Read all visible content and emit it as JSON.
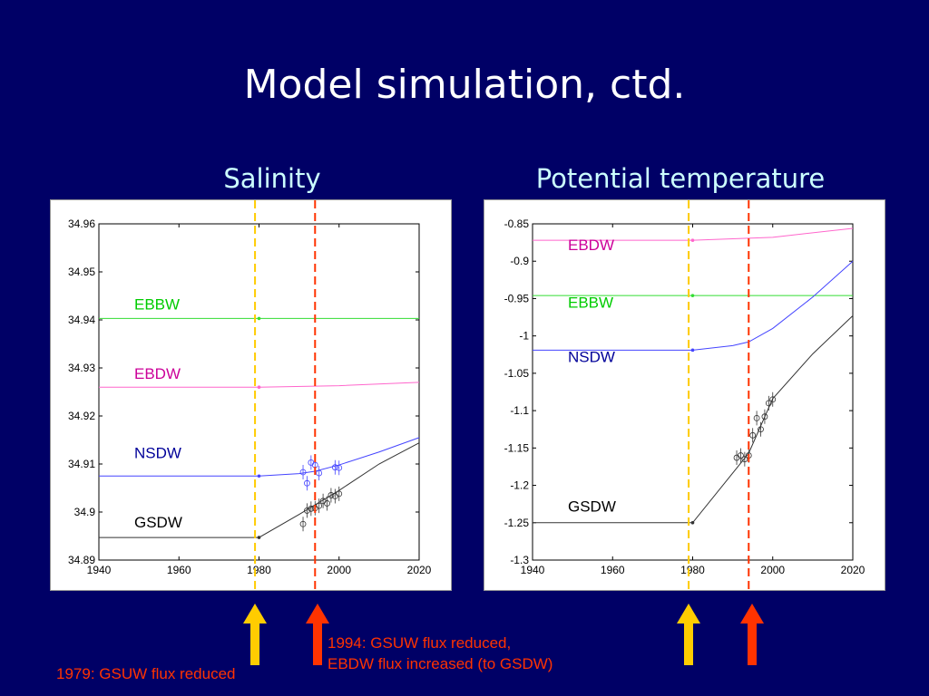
{
  "title": "Model simulation, ctd.",
  "notes": {
    "n1979": "1979: GSUW flux reduced",
    "n1994_line1": "1994: GSUW flux reduced,",
    "n1994_line2": "EBDW flux increased (to GSDW)"
  },
  "colors": {
    "EBBW": "#00cc00",
    "EBDW": "#cc0099",
    "NSDW": "#000099",
    "GSDW": "#000000",
    "line1979": "#ffcc00",
    "line1994": "#ff3300"
  },
  "chart_data": [
    {
      "type": "line",
      "title": "Salinity",
      "xlim": [
        1940,
        2020
      ],
      "ylim": [
        34.89,
        34.96
      ],
      "xticks": [
        "1940",
        "1960",
        "1980",
        "2000",
        "2020"
      ],
      "yticks": [
        "34.89",
        "34.9",
        "34.91",
        "34.92",
        "34.93",
        "34.94",
        "34.95",
        "34.96"
      ],
      "vlines": [
        1979,
        1994
      ],
      "series": [
        {
          "name": "EBBW",
          "x": [
            1940,
            1980,
            2020
          ],
          "y": [
            34.9403,
            34.9403,
            34.9403
          ],
          "label_y": 34.9422
        },
        {
          "name": "EBDW",
          "x": [
            1940,
            1980,
            2000,
            2020
          ],
          "y": [
            34.926,
            34.926,
            34.9263,
            34.927
          ],
          "label_y": 34.9277
        },
        {
          "name": "NSDW",
          "x": [
            1940,
            1980,
            1990,
            1994,
            2000,
            2010,
            2020
          ],
          "y": [
            34.9075,
            34.9075,
            34.908,
            34.9085,
            34.9098,
            34.9125,
            34.9155
          ],
          "label_y": 34.9112,
          "obs_x": [
            1991,
            1992,
            1993,
            1994,
            1995,
            1999,
            2000
          ],
          "obs_y": [
            34.9083,
            34.906,
            34.9103,
            34.9098,
            34.9081,
            34.9093,
            34.9092
          ]
        },
        {
          "name": "GSDW",
          "x": [
            1940,
            1980,
            1990,
            1994,
            2000,
            2010,
            2020
          ],
          "y": [
            34.8947,
            34.8947,
            34.8995,
            34.9015,
            34.9045,
            34.91,
            34.9144
          ],
          "label_y": 34.8968,
          "obs_x": [
            1991,
            1992,
            1993,
            1994,
            1995,
            1996,
            1997,
            1998,
            1999,
            2000
          ],
          "obs_y": [
            34.8975,
            34.9003,
            34.9007,
            34.9008,
            34.9013,
            34.9023,
            34.9018,
            34.9035,
            34.9033,
            34.9038
          ]
        }
      ]
    },
    {
      "type": "line",
      "title": "Potential temperature",
      "xlim": [
        1940,
        2020
      ],
      "ylim": [
        -1.3,
        -0.85
      ],
      "xticks": [
        "1940",
        "1960",
        "1980",
        "2000",
        "2020"
      ],
      "yticks": [
        "-1.3",
        "-1.25",
        "-1.2",
        "-1.15",
        "-1.1",
        "-1.05",
        "-1",
        "-0.95",
        "-0.9",
        "-0.85"
      ],
      "vlines": [
        1979,
        1994
      ],
      "series": [
        {
          "name": "EBDW",
          "x": [
            1940,
            1980,
            2000,
            2020
          ],
          "y": [
            -0.872,
            -0.872,
            -0.868,
            -0.856
          ],
          "label_y": -0.885
        },
        {
          "name": "EBBW",
          "x": [
            1940,
            1980,
            2020
          ],
          "y": [
            -0.946,
            -0.946,
            -0.946
          ],
          "label_y": -0.962
        },
        {
          "name": "NSDW",
          "x": [
            1940,
            1980,
            1990,
            1994,
            2000,
            2010,
            2020
          ],
          "y": [
            -1.019,
            -1.019,
            -1.013,
            -1.008,
            -0.99,
            -0.948,
            -0.9
          ],
          "label_y": -1.035
        },
        {
          "name": "GSDW",
          "x": [
            1940,
            1980,
            1994,
            2000,
            2010,
            2020
          ],
          "y": [
            -1.25,
            -1.25,
            -1.157,
            -1.084,
            -1.024,
            -0.973
          ],
          "label_y": -1.235,
          "obs_x": [
            1991,
            1992,
            1993,
            1994,
            1995,
            1996,
            1997,
            1998,
            1999,
            2000
          ],
          "obs_y": [
            -1.163,
            -1.16,
            -1.165,
            -1.16,
            -1.133,
            -1.11,
            -1.125,
            -1.108,
            -1.09,
            -1.085
          ]
        }
      ]
    }
  ]
}
